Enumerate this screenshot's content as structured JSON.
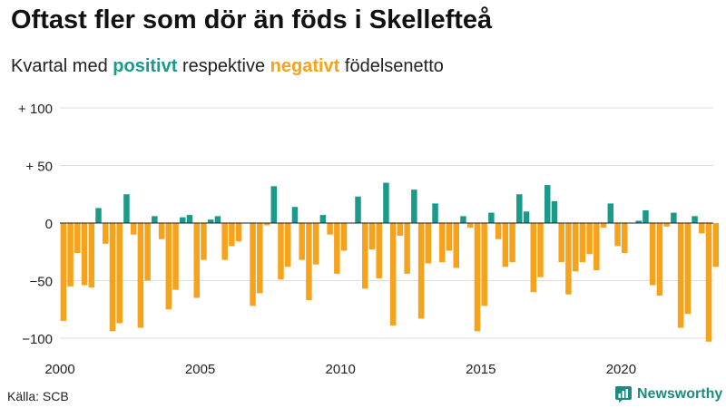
{
  "title": "Oftast fler som dör än föds i Skellefteå",
  "subtitle": {
    "prefix": "Kvartal med ",
    "positive": "positivt",
    "middle": " respektive ",
    "negative": "negativt",
    "suffix": " födelsenetto"
  },
  "source": "Källa: SCB",
  "brand": "Newsworthy",
  "colors": {
    "positive": "#1a9a8a",
    "negative": "#f7a21b",
    "grid": "#dddddd",
    "zero": "#222222",
    "brand": "#1e8a80"
  },
  "chart_data": {
    "type": "bar",
    "title": "Oftast fler som dör än föds i Skellefteå",
    "subtitle": "Kvartal med positivt respektive negativt födelsenetto",
    "x_start_year": 2000,
    "periods_per_year": 4,
    "xticks": [
      2000,
      2005,
      2010,
      2015,
      2020
    ],
    "yticks": [
      100,
      50,
      0,
      -50,
      -100
    ],
    "ytick_labels": [
      "+ 100",
      "+ 50",
      "0",
      "−50",
      "−100"
    ],
    "ylim": [
      -105,
      105
    ],
    "grid": true,
    "values": [
      -85,
      -55,
      -26,
      -54,
      -56,
      13,
      -18,
      -94,
      -87,
      25,
      -10,
      -91,
      -50,
      6,
      -14,
      -75,
      -58,
      5,
      7,
      -65,
      -32,
      3,
      6,
      -32,
      -20,
      -16,
      0,
      -72,
      -61,
      -2,
      32,
      -49,
      -38,
      14,
      -32,
      -67,
      -36,
      7,
      -10,
      -44,
      -24,
      0,
      23,
      -57,
      -23,
      -48,
      35,
      -89,
      -11,
      -44,
      29,
      -83,
      -35,
      17,
      -34,
      -24,
      -39,
      6,
      -4,
      -94,
      -72,
      9,
      -14,
      -38,
      -34,
      25,
      10,
      -60,
      -47,
      33,
      19,
      -34,
      -62,
      -42,
      -34,
      -27,
      -41,
      -4,
      17,
      -20,
      -26,
      0,
      2,
      11,
      -54,
      -63,
      -3,
      9,
      -91,
      -79,
      6,
      -9,
      -103,
      -38
    ]
  }
}
